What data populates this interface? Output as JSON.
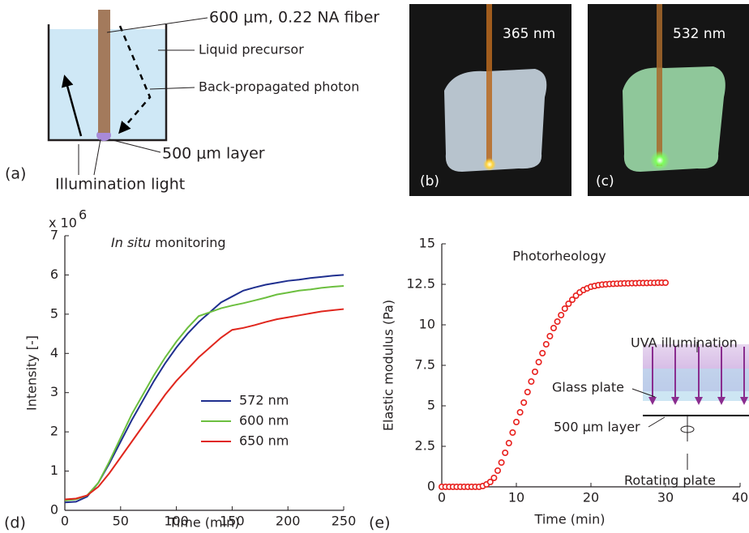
{
  "panels": {
    "a": {
      "label": "(a)",
      "fiber": "600 μm, 0.22 NA fiber",
      "liquid": "Liquid precursor",
      "photon": "Back-propagated photon",
      "layer": "500 μm layer",
      "light": "Illumination light"
    },
    "b": {
      "label": "(b)",
      "wavelength": "365 nm"
    },
    "c": {
      "label": "(c)",
      "wavelength": "532 nm"
    }
  },
  "chart_data": [
    {
      "type": "line",
      "panel_label": "(d)",
      "annotation_italic": "In situ",
      "annotation": "monitoring",
      "y_scale_label": "x 10",
      "y_scale_exponent": "6",
      "xlabel": "Time (min)",
      "ylabel": "Intensity [-]",
      "x": [
        0,
        10,
        20,
        30,
        40,
        50,
        60,
        70,
        80,
        90,
        100,
        110,
        120,
        130,
        140,
        150,
        160,
        170,
        180,
        190,
        200,
        210,
        220,
        230,
        240,
        250
      ],
      "series": [
        {
          "name": "572 nm",
          "color": "#1f2f8f",
          "values": [
            0.2,
            0.22,
            0.35,
            0.7,
            1.2,
            1.75,
            2.3,
            2.8,
            3.3,
            3.75,
            4.15,
            4.5,
            4.8,
            5.05,
            5.3,
            5.45,
            5.6,
            5.68,
            5.75,
            5.8,
            5.85,
            5.88,
            5.92,
            5.95,
            5.98,
            6.0
          ]
        },
        {
          "name": "600 nm",
          "color": "#6cbf3f",
          "values": [
            0.25,
            0.28,
            0.38,
            0.7,
            1.25,
            1.85,
            2.45,
            2.95,
            3.45,
            3.9,
            4.3,
            4.65,
            4.95,
            5.05,
            5.15,
            5.22,
            5.28,
            5.35,
            5.42,
            5.5,
            5.55,
            5.6,
            5.63,
            5.67,
            5.7,
            5.72
          ]
        },
        {
          "name": "650 nm",
          "color": "#e0261d",
          "values": [
            0.28,
            0.3,
            0.38,
            0.6,
            0.95,
            1.35,
            1.75,
            2.15,
            2.55,
            2.95,
            3.3,
            3.6,
            3.9,
            4.15,
            4.4,
            4.6,
            4.65,
            4.72,
            4.8,
            4.87,
            4.92,
            4.97,
            5.02,
            5.07,
            5.1,
            5.13
          ]
        }
      ],
      "xlim": [
        0,
        250
      ],
      "xticks": [
        0,
        50,
        100,
        150,
        200,
        250
      ],
      "ylim": [
        0,
        7
      ],
      "yticks": [
        0,
        1,
        2,
        3,
        4,
        5,
        6,
        7
      ],
      "legend": "lower right"
    },
    {
      "type": "scatter",
      "panel_label": "(e)",
      "title": "Photorheology",
      "xlabel": "Time (min)",
      "ylabel": "Elastic modulus (Pa)",
      "color": "#e8201d",
      "x": [
        0,
        0.5,
        1,
        1.5,
        2,
        2.5,
        3,
        3.5,
        4,
        4.5,
        5,
        5.5,
        6,
        6.5,
        7,
        7.5,
        8,
        8.5,
        9,
        9.5,
        10,
        10.5,
        11,
        11.5,
        12,
        12.5,
        13,
        13.5,
        14,
        14.5,
        15,
        15.5,
        16,
        16.5,
        17,
        17.5,
        18,
        18.5,
        19,
        19.5,
        20,
        20.5,
        21,
        21.5,
        22,
        22.5,
        23,
        23.5,
        24,
        24.5,
        25,
        25.5,
        26,
        26.5,
        27,
        27.5,
        28,
        28.5,
        29,
        29.5,
        30
      ],
      "values": [
        0,
        0,
        0,
        0,
        0,
        0,
        0,
        0,
        0,
        0,
        0,
        0.05,
        0.15,
        0.3,
        0.55,
        1.0,
        1.5,
        2.1,
        2.7,
        3.35,
        4.0,
        4.6,
        5.2,
        5.85,
        6.5,
        7.1,
        7.7,
        8.25,
        8.8,
        9.3,
        9.8,
        10.2,
        10.6,
        11.0,
        11.3,
        11.55,
        11.8,
        12.0,
        12.15,
        12.25,
        12.35,
        12.4,
        12.45,
        12.48,
        12.5,
        12.52,
        12.53,
        12.54,
        12.55,
        12.56,
        12.56,
        12.57,
        12.57,
        12.58,
        12.58,
        12.58,
        12.59,
        12.59,
        12.6,
        12.6,
        12.6
      ],
      "xlim": [
        0,
        40
      ],
      "xticks": [
        0,
        10,
        20,
        30,
        40
      ],
      "ylim": [
        0,
        15
      ],
      "yticks": [
        0,
        2.5,
        5,
        7.5,
        10,
        12.5,
        15
      ],
      "inset": {
        "illumination": "UVA illumination",
        "glass": "Glass plate",
        "layer": "500 μm layer",
        "rotating": "Rotating plate"
      }
    }
  ]
}
